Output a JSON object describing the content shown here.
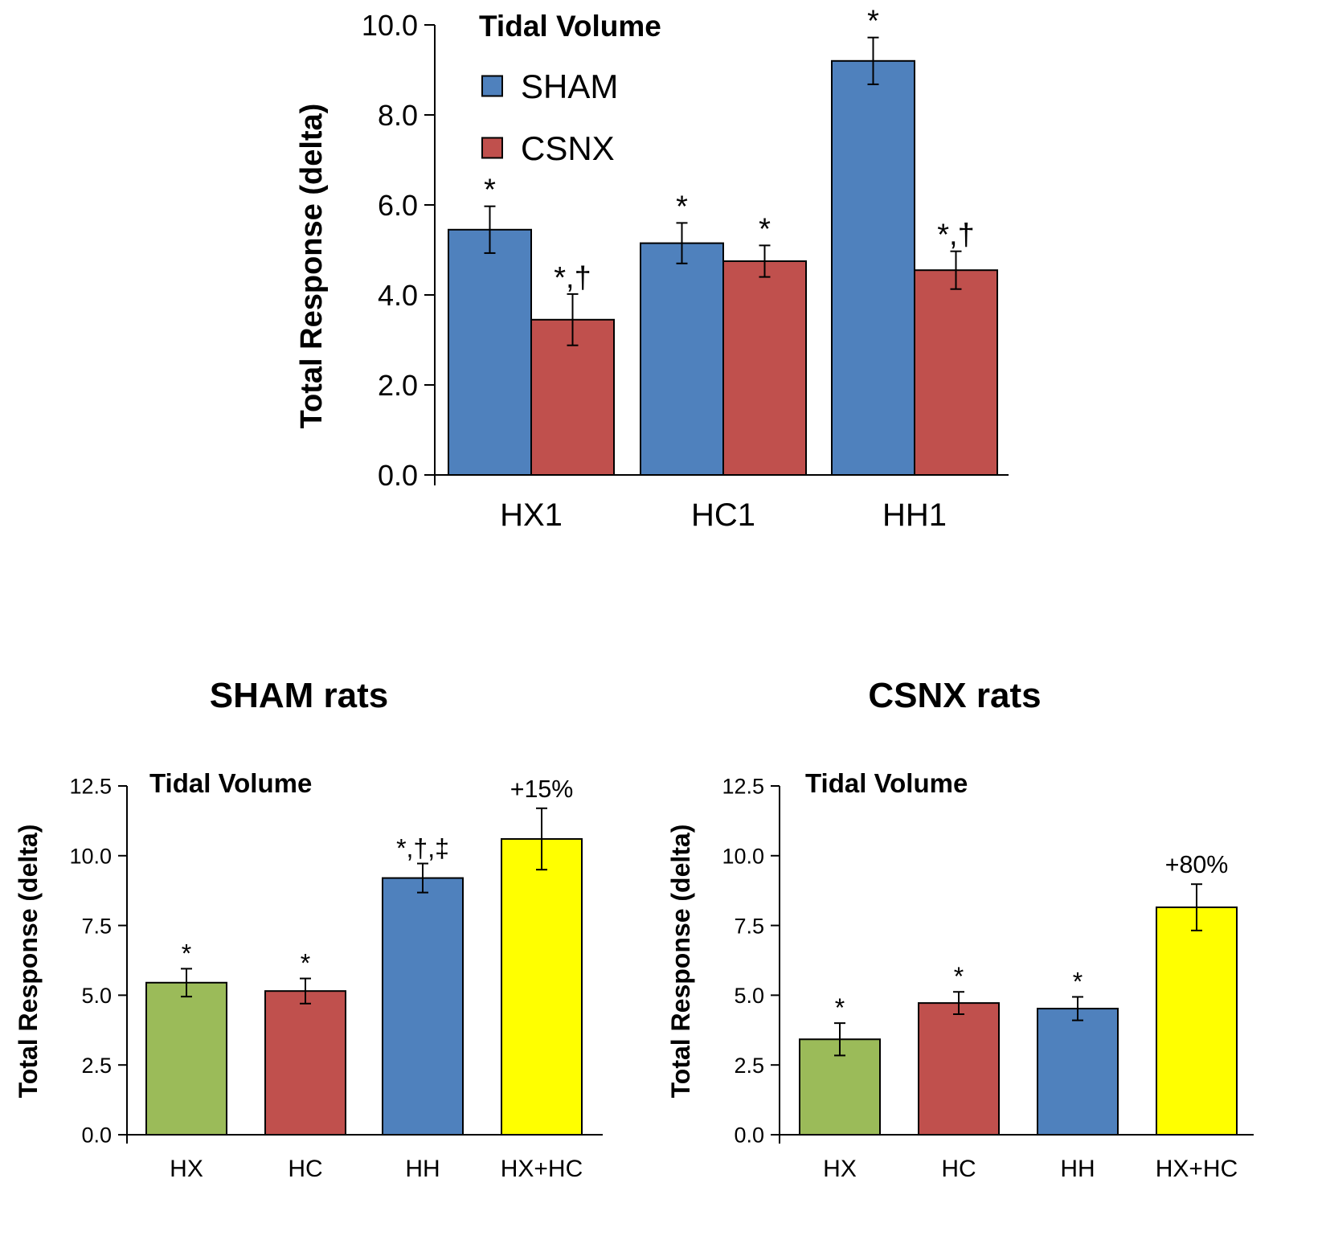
{
  "chart_data": [
    {
      "id": "top",
      "type": "bar",
      "title": "Tidal Volume",
      "ylabel": "Total Response (delta)",
      "xlabel": "",
      "ylim": [
        0,
        10
      ],
      "yticks": [
        "0.0",
        "2.0",
        "4.0",
        "6.0",
        "8.0",
        "10.0"
      ],
      "categories": [
        "HX1",
        "HC1",
        "HH1"
      ],
      "legend_position": "top-left",
      "series": [
        {
          "name": "SHAM",
          "color": "#4f81bd",
          "values": [
            5.45,
            5.15,
            9.2
          ],
          "errors": [
            0.52,
            0.45,
            0.52
          ],
          "annotations": [
            "*",
            "*",
            "*"
          ]
        },
        {
          "name": "CSNX",
          "color": "#c0504d",
          "values": [
            3.45,
            4.75,
            4.55
          ],
          "errors": [
            0.57,
            0.35,
            0.42
          ],
          "annotations": [
            "*,†",
            "*",
            "*,†"
          ]
        }
      ]
    },
    {
      "id": "sham",
      "type": "bar",
      "heading": "SHAM rats",
      "title": "Tidal Volume",
      "ylabel": "Total Response (delta)",
      "xlabel": "",
      "ylim": [
        0,
        12.5
      ],
      "yticks": [
        "0.0",
        "2.5",
        "5.0",
        "7.5",
        "10.0",
        "12.5"
      ],
      "categories": [
        "HX",
        "HC",
        "HH",
        "HX+HC"
      ],
      "colors": [
        "#9bbb59",
        "#c0504d",
        "#4f81bd",
        "#ffff00"
      ],
      "values": [
        5.45,
        5.15,
        9.2,
        10.6
      ],
      "errors": [
        0.5,
        0.45,
        0.52,
        1.1
      ],
      "annotations": [
        "*",
        "*",
        "*,†,‡",
        "+15%"
      ]
    },
    {
      "id": "csnx",
      "type": "bar",
      "heading": "CSNX rats",
      "title": "Tidal Volume",
      "ylabel": "Total Response (delta)",
      "xlabel": "",
      "ylim": [
        0,
        12.5
      ],
      "yticks": [
        "0.0",
        "2.5",
        "5.0",
        "7.5",
        "10.0",
        "12.5"
      ],
      "categories": [
        "HX",
        "HC",
        "HH",
        "HX+HC"
      ],
      "colors": [
        "#9bbb59",
        "#c0504d",
        "#4f81bd",
        "#ffff00"
      ],
      "values": [
        3.42,
        4.72,
        4.52,
        8.15
      ],
      "errors": [
        0.58,
        0.4,
        0.42,
        0.83
      ],
      "annotations": [
        "*",
        "*",
        "*",
        "+80%"
      ]
    }
  ]
}
